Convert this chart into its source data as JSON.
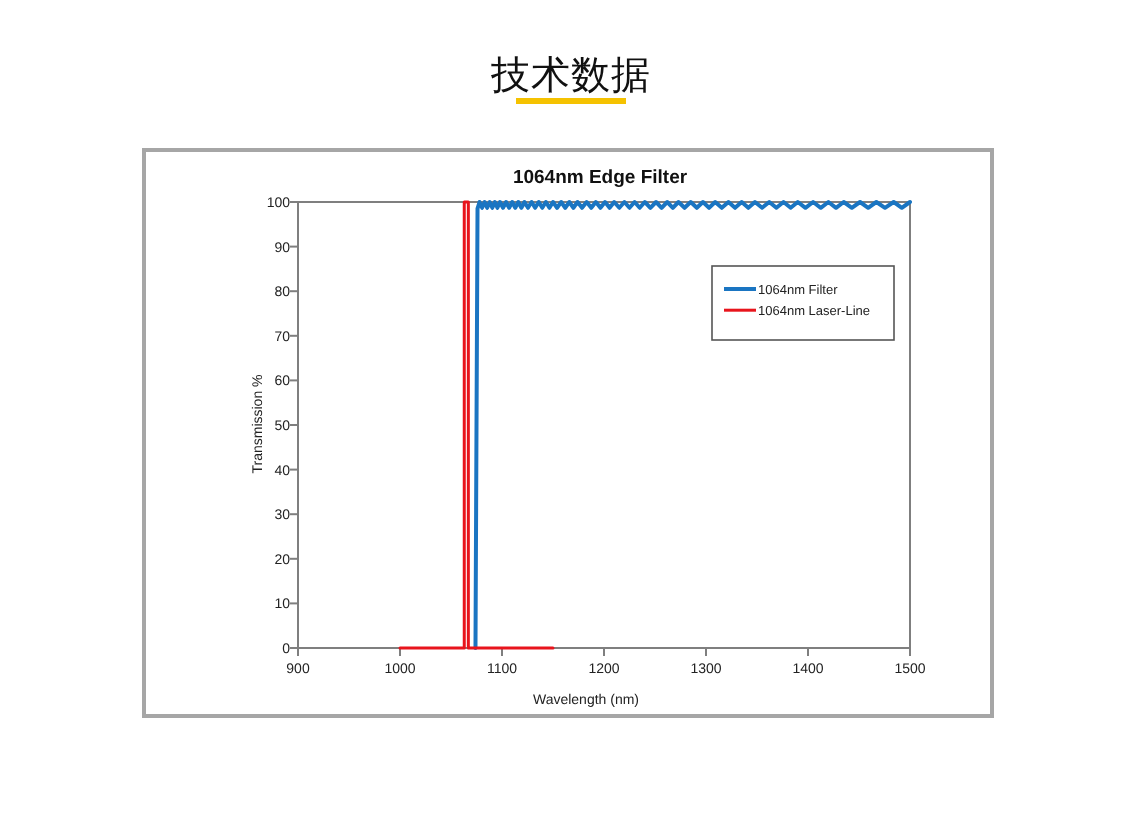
{
  "chart_data": {
    "type": "line",
    "title": "技术数据",
    "subtitle": "1064nm Edge Filter",
    "xlabel": "Wavelength (nm)",
    "ylabel": "Transmission %",
    "xlim": [
      900,
      1500
    ],
    "xticks": [
      900,
      1000,
      1100,
      1200,
      1300,
      1400,
      1500
    ],
    "ylim": [
      0,
      100
    ],
    "yticks": [
      0,
      10,
      20,
      30,
      40,
      50,
      60,
      70,
      80,
      90,
      100
    ],
    "legend": "top right",
    "series": [
      {
        "name": "1064nm Filter",
        "color": "#1a75c2",
        "x": [
          1074,
          1076,
          1078,
          1080.5,
          1083,
          1085.5,
          1088,
          1090.5,
          1093,
          1095.5,
          1098,
          1101,
          1104,
          1107,
          1110,
          1113,
          1116,
          1119,
          1122,
          1125.5,
          1129,
          1132.5,
          1136,
          1139.5,
          1143,
          1146.5,
          1150,
          1154,
          1158,
          1162,
          1166,
          1170,
          1174,
          1178.5,
          1183,
          1187.5,
          1192,
          1196.5,
          1201,
          1205.5,
          1210,
          1215,
          1220,
          1225,
          1230,
          1235,
          1240,
          1245.5,
          1251,
          1256.5,
          1262,
          1267.5,
          1273,
          1279,
          1285,
          1291,
          1297,
          1303,
          1309,
          1315.5,
          1322,
          1328.5,
          1335,
          1341.5,
          1348,
          1355,
          1362,
          1369,
          1376,
          1383,
          1390,
          1397.5,
          1405,
          1412.5,
          1420,
          1427.5,
          1435,
          1443,
          1451,
          1459,
          1467,
          1475.5,
          1484,
          1492,
          1500
        ],
        "values": [
          0,
          98.5,
          100,
          98.7,
          100,
          98.7,
          100,
          98.7,
          100,
          98.7,
          100,
          98.7,
          100,
          98.7,
          100,
          98.7,
          100,
          98.7,
          100,
          98.7,
          100,
          98.7,
          100,
          98.7,
          100,
          98.7,
          100,
          98.7,
          100,
          98.7,
          100,
          98.7,
          100,
          98.7,
          100,
          98.7,
          100,
          98.7,
          100,
          98.7,
          100,
          98.7,
          100,
          98.7,
          100,
          98.7,
          100,
          98.7,
          100,
          98.7,
          100,
          98.7,
          100,
          98.7,
          100,
          98.7,
          100,
          98.7,
          100,
          98.7,
          100,
          98.7,
          100,
          98.7,
          100,
          98.7,
          100,
          98.7,
          100,
          98.7,
          100,
          98.7,
          100,
          98.7,
          100,
          98.7,
          100,
          98.7,
          100,
          98.7,
          100,
          98.7,
          100,
          98.7,
          100
        ]
      },
      {
        "name": "1064nm Laser-Line",
        "color": "#e8141c",
        "x": [
          1000,
          1063,
          1063,
          1067,
          1067,
          1150
        ],
        "values": [
          0,
          0,
          100,
          100,
          0,
          0
        ]
      }
    ]
  }
}
